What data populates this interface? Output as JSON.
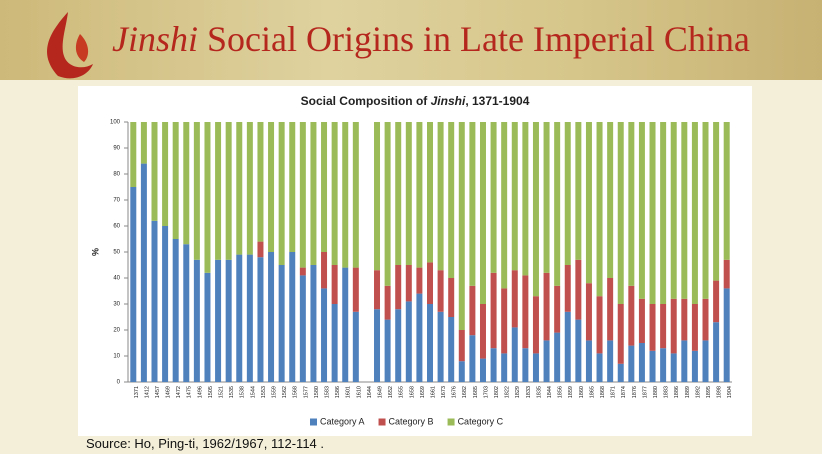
{
  "header": {
    "title": [
      "Jinshi",
      " Social Origins in Late Imperial China"
    ]
  },
  "chart_data": {
    "type": "stacked_bar",
    "title": [
      "Social Composition of ",
      "Jinshi",
      ", 1371-1904"
    ],
    "y_label": "%",
    "categories": [
      "1371",
      "1412",
      "1457",
      "1469",
      "1472",
      "1475",
      "1496",
      "1505",
      "1521",
      "1535",
      "1538",
      "1544",
      "1553",
      "1559",
      "1562",
      "1568",
      "1577",
      "1580",
      "1583",
      "1586",
      "1601",
      "1610",
      "1644",
      "1649",
      "1652",
      "1655",
      "1658",
      "1659",
      "1661",
      "1673",
      "1676",
      "1682",
      "1685",
      "1703",
      "1802",
      "1822",
      "1829",
      "1833",
      "1835",
      "1844",
      "1856",
      "1859",
      "1860",
      "1865",
      "1868",
      "1871",
      "1874",
      "1876",
      "1877",
      "1880",
      "1883",
      "1886",
      "1889",
      "1892",
      "1895",
      "1898",
      "1904"
    ],
    "series": [
      {
        "name": "Category A",
        "color": "#4f81bd",
        "values": [
          75,
          84,
          62,
          60,
          55,
          53,
          47,
          42,
          47,
          47,
          49,
          49,
          48,
          50,
          45,
          50,
          41,
          45,
          36,
          30,
          44,
          27,
          null,
          28,
          24,
          28,
          31,
          34,
          30,
          27,
          25,
          8,
          18,
          9,
          13,
          11,
          21,
          13,
          11,
          16,
          19,
          27,
          24,
          16,
          11,
          16,
          7,
          14,
          15,
          12,
          13,
          11,
          16,
          12,
          16,
          23,
          36
        ]
      },
      {
        "name": "Category B",
        "color": "#c0504d",
        "values": [
          0,
          0,
          0,
          0,
          0,
          0,
          0,
          0,
          0,
          0,
          0,
          0,
          6,
          0,
          0,
          0,
          3,
          0,
          14,
          15,
          0,
          17,
          null,
          15,
          13,
          17,
          14,
          10,
          16,
          16,
          15,
          12,
          19,
          21,
          29,
          25,
          22,
          28,
          22,
          26,
          18,
          18,
          23,
          22,
          22,
          24,
          23,
          23,
          17,
          18,
          17,
          21,
          16,
          18,
          16,
          16,
          11
        ]
      },
      {
        "name": "Category C",
        "color": "#9bbb59",
        "values": [
          25,
          16,
          38,
          40,
          45,
          47,
          53,
          58,
          53,
          53,
          51,
          51,
          46,
          50,
          55,
          50,
          56,
          55,
          50,
          55,
          56,
          56,
          null,
          57,
          63,
          55,
          55,
          56,
          54,
          57,
          60,
          80,
          63,
          70,
          58,
          64,
          57,
          59,
          67,
          58,
          63,
          55,
          53,
          62,
          67,
          60,
          70,
          63,
          68,
          70,
          70,
          68,
          68,
          70,
          68,
          61,
          53
        ]
      }
    ],
    "ylim": [
      0,
      100
    ],
    "yticks": [
      0,
      10,
      20,
      30,
      40,
      50,
      60,
      70,
      80,
      90,
      100
    ],
    "legend": "bottom"
  },
  "footer": {
    "source": "Source: Ho, Ping-ti, 1962/1967, 112-114 ."
  }
}
